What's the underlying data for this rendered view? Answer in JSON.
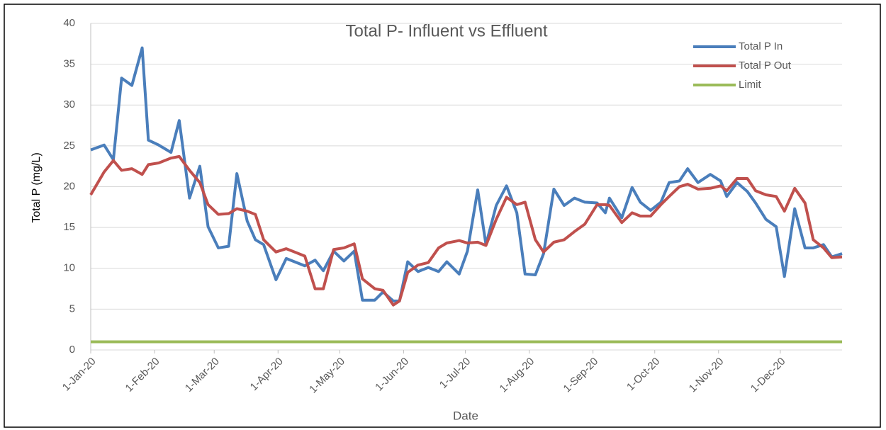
{
  "chart_data": {
    "type": "line",
    "title": "Total P- Influent vs Effluent",
    "xlabel": "Date",
    "ylabel": "Total P (mg/L)",
    "x": [
      0,
      6.5,
      11,
      15,
      20,
      25,
      28,
      33,
      39,
      43,
      48,
      53,
      57,
      62,
      67,
      71,
      76,
      80,
      84,
      90,
      95,
      99,
      104,
      109,
      113,
      118,
      123,
      128,
      132,
      138,
      142,
      147,
      150,
      154,
      159,
      164,
      169,
      173,
      179,
      183,
      188,
      192,
      197,
      202,
      207,
      211,
      216,
      220,
      225,
      230,
      235,
      240,
      246,
      250,
      252,
      258,
      263,
      267,
      272,
      277,
      281,
      286,
      290,
      295,
      301,
      306,
      309,
      314,
      319,
      323,
      328,
      333,
      337,
      342,
      347,
      351,
      356,
      360,
      365
    ],
    "series": [
      {
        "name": "Total P In",
        "color": "#4a7ebb",
        "values": [
          24.5,
          25.1,
          23.3,
          33.3,
          32.4,
          37,
          25.7,
          25.1,
          24.2,
          28.1,
          18.6,
          22.5,
          15.1,
          12.5,
          12.7,
          21.6,
          15.8,
          13.5,
          12.9,
          8.6,
          11.2,
          10.8,
          10.3,
          11,
          9.7,
          12.1,
          10.9,
          12.1,
          6.1,
          6.1,
          7.1,
          6,
          6,
          10.8,
          9.6,
          10.1,
          9.6,
          10.8,
          9.3,
          12.1,
          19.6,
          12.9,
          17.7,
          20.1,
          16.8,
          9.3,
          9.2,
          11.8,
          19.7,
          17.7,
          18.6,
          18.1,
          18,
          16.8,
          18.6,
          16.2,
          19.9,
          18.1,
          17.1,
          18.1,
          20.5,
          20.7,
          22.2,
          20.5,
          21.5,
          20.7,
          18.8,
          20.5,
          19.4,
          18,
          16,
          15.1,
          9,
          17.3,
          12.5,
          12.5,
          12.9,
          11.4,
          11.8
        ]
      },
      {
        "name": "Total P Out",
        "color": "#c0504d",
        "values": [
          19,
          21.8,
          23.2,
          22,
          22.2,
          21.5,
          22.7,
          22.9,
          23.5,
          23.7,
          22,
          20.5,
          17.8,
          16.6,
          16.7,
          17.3,
          17,
          16.6,
          13.5,
          12,
          12.4,
          12,
          11.5,
          7.5,
          7.5,
          12.3,
          12.5,
          13,
          8.7,
          7.5,
          7.3,
          5.5,
          6,
          9.5,
          10.4,
          10.7,
          12.5,
          13.1,
          13.4,
          13.1,
          13.2,
          12.8,
          16,
          18.7,
          17.8,
          18.1,
          13.5,
          12,
          13.2,
          13.5,
          14.5,
          15.4,
          17.8,
          17.8,
          17.7,
          15.6,
          16.8,
          16.4,
          16.4,
          17.8,
          18.8,
          20,
          20.3,
          19.7,
          19.8,
          20.1,
          19.5,
          21,
          21,
          19.5,
          19,
          18.8,
          17,
          19.8,
          18,
          13.5,
          12.5,
          11.3,
          11.4
        ]
      },
      {
        "name": "Limit",
        "color": "#9bbb59",
        "values": [
          1,
          1,
          1,
          1,
          1,
          1,
          1,
          1,
          1,
          1,
          1,
          1,
          1,
          1,
          1,
          1,
          1,
          1,
          1,
          1,
          1,
          1,
          1,
          1,
          1,
          1,
          1,
          1,
          1,
          1,
          1,
          1,
          1,
          1,
          1,
          1,
          1,
          1,
          1,
          1,
          1,
          1,
          1,
          1,
          1,
          1,
          1,
          1,
          1,
          1,
          1,
          1,
          1,
          1,
          1,
          1,
          1,
          1,
          1,
          1,
          1,
          1,
          1,
          1,
          1,
          1,
          1,
          1,
          1,
          1,
          1,
          1,
          1,
          1,
          1,
          1,
          1,
          1,
          1
        ]
      }
    ],
    "xlim": [
      0,
      365
    ],
    "xticks": [
      {
        "value": 0,
        "label": "1-Jan-20"
      },
      {
        "value": 31,
        "label": "1-Feb-20"
      },
      {
        "value": 60,
        "label": "1-Mar-20"
      },
      {
        "value": 91,
        "label": "1-Apr-20"
      },
      {
        "value": 121,
        "label": "1-May-20"
      },
      {
        "value": 152,
        "label": "1-Jun-20"
      },
      {
        "value": 182,
        "label": "1-Jul-20"
      },
      {
        "value": 213,
        "label": "1-Aug-20"
      },
      {
        "value": 244,
        "label": "1-Sep-20"
      },
      {
        "value": 274,
        "label": "1-Oct-20"
      },
      {
        "value": 305,
        "label": "1-Nov-20"
      },
      {
        "value": 335,
        "label": "1-Dec-20"
      }
    ],
    "ylim": [
      0,
      40
    ],
    "yticks": [
      0,
      5,
      10,
      15,
      20,
      25,
      30,
      35,
      40
    ],
    "grid": true,
    "legend": "top-right"
  }
}
